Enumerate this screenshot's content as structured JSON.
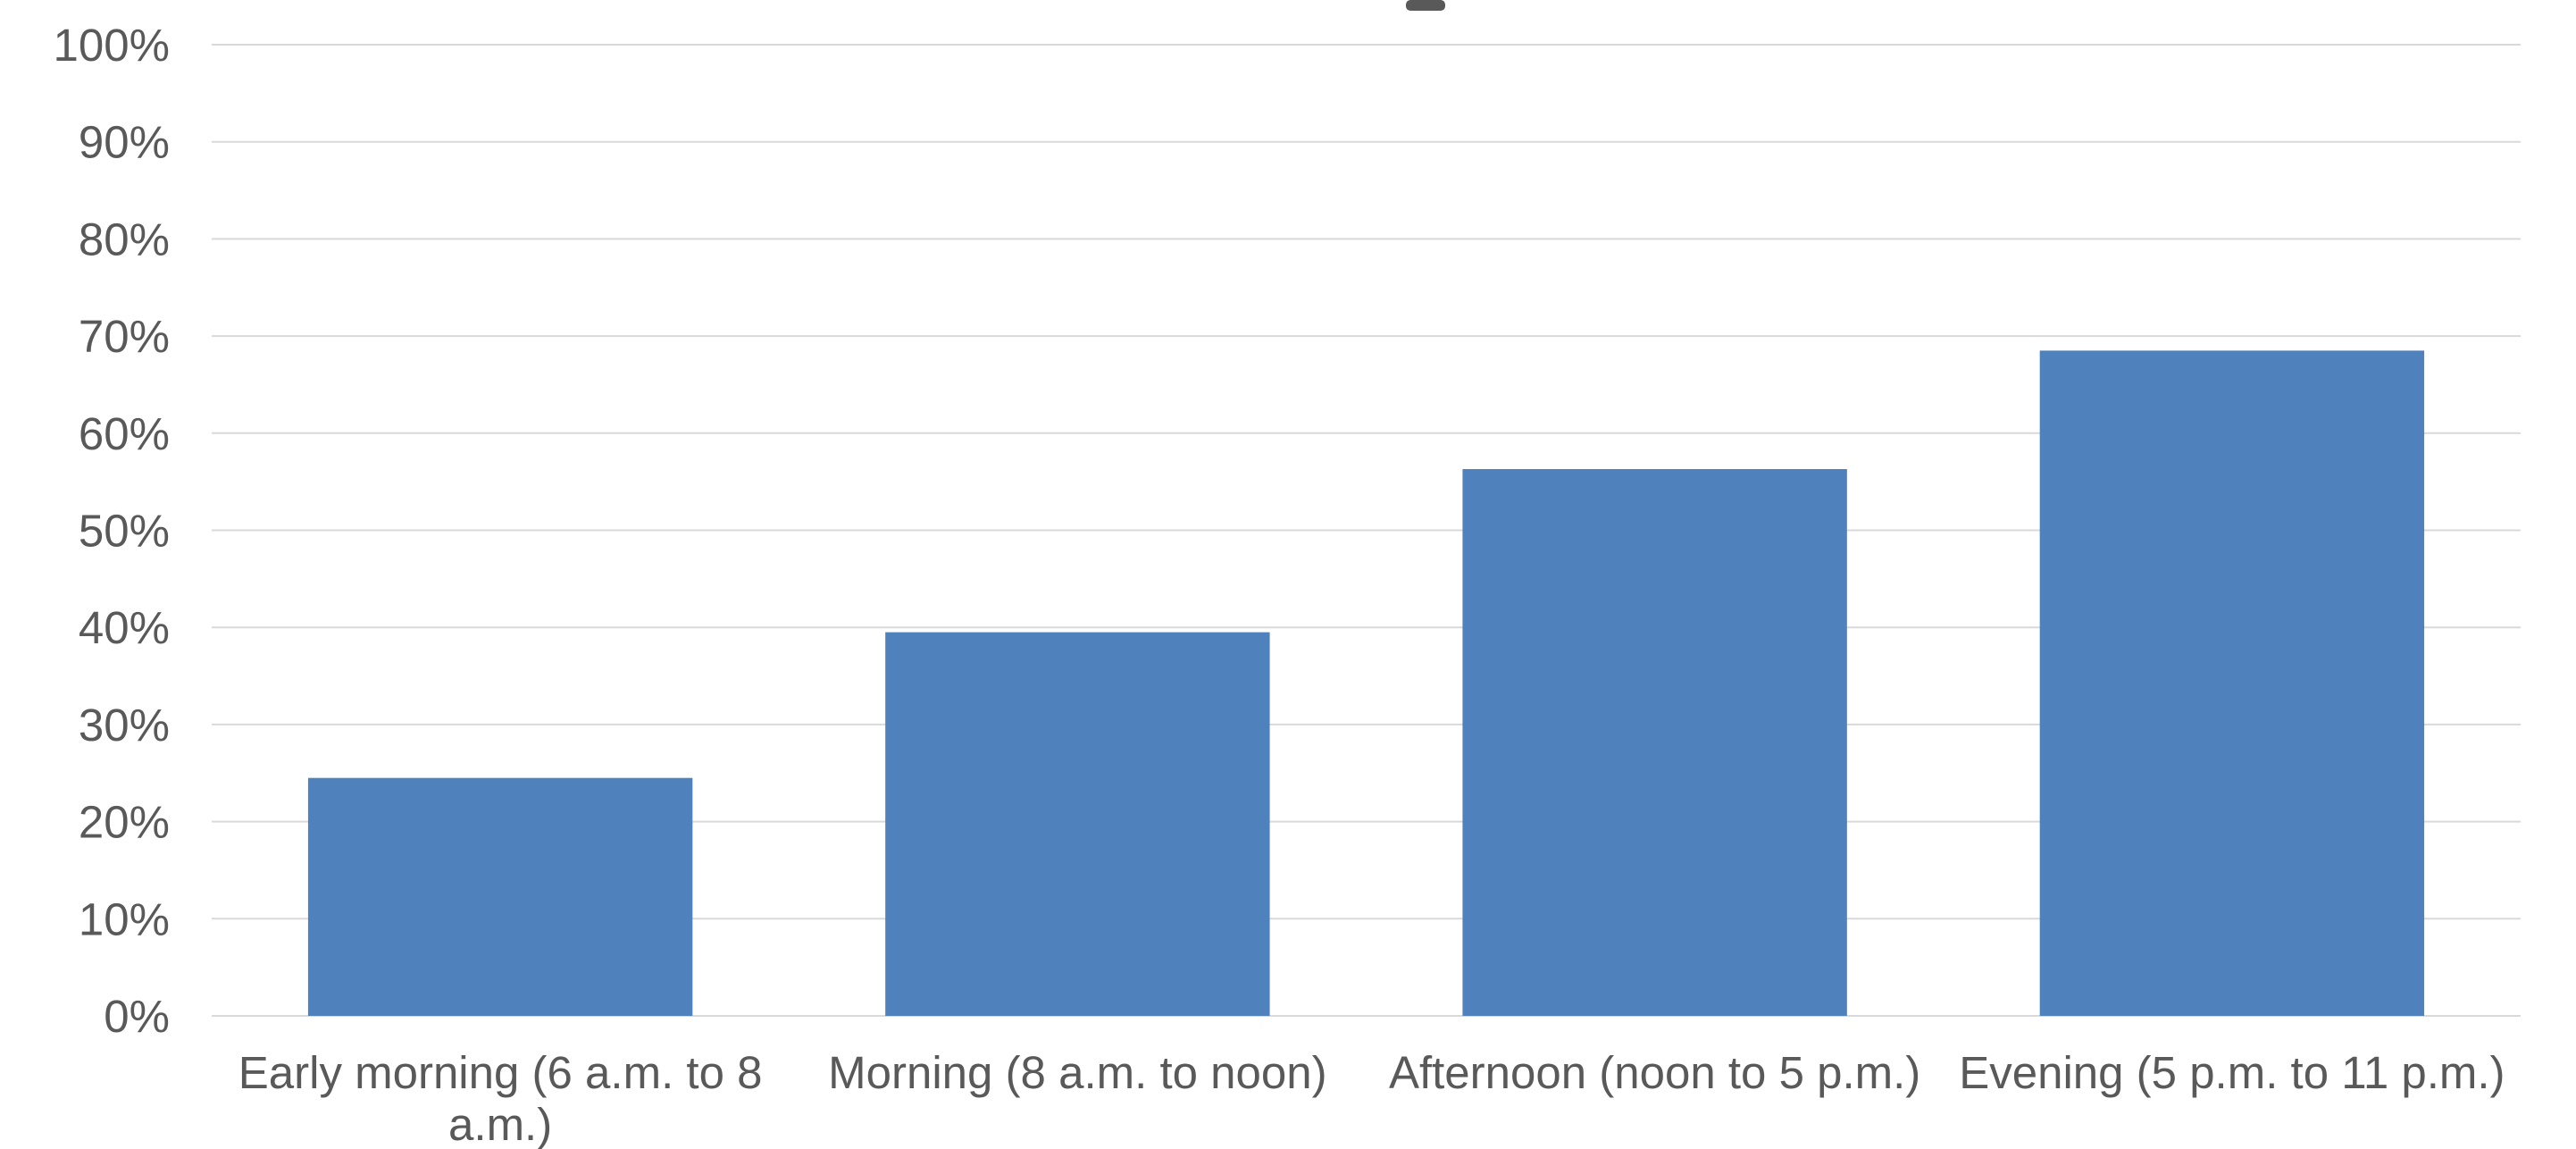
{
  "chart_data": {
    "type": "bar",
    "categories": [
      [
        "Early morning (6 a.m. to 8",
        "a.m.)"
      ],
      [
        "Morning (8 a.m. to noon)"
      ],
      [
        "Afternoon (noon to 5 p.m.)"
      ],
      [
        "Evening (5 p.m. to 11 p.m.)"
      ]
    ],
    "values": [
      24.5,
      39.5,
      56.3,
      68.5
    ],
    "yticks": [
      "0%",
      "10%",
      "20%",
      "30%",
      "40%",
      "50%",
      "60%",
      "70%",
      "80%",
      "90%",
      "100%"
    ],
    "ylim": [
      0,
      100
    ],
    "grid": true,
    "legend": "none",
    "colors": {
      "bar": "#4f81bd",
      "grid": "#d9d9d9",
      "text": "#595959"
    }
  }
}
